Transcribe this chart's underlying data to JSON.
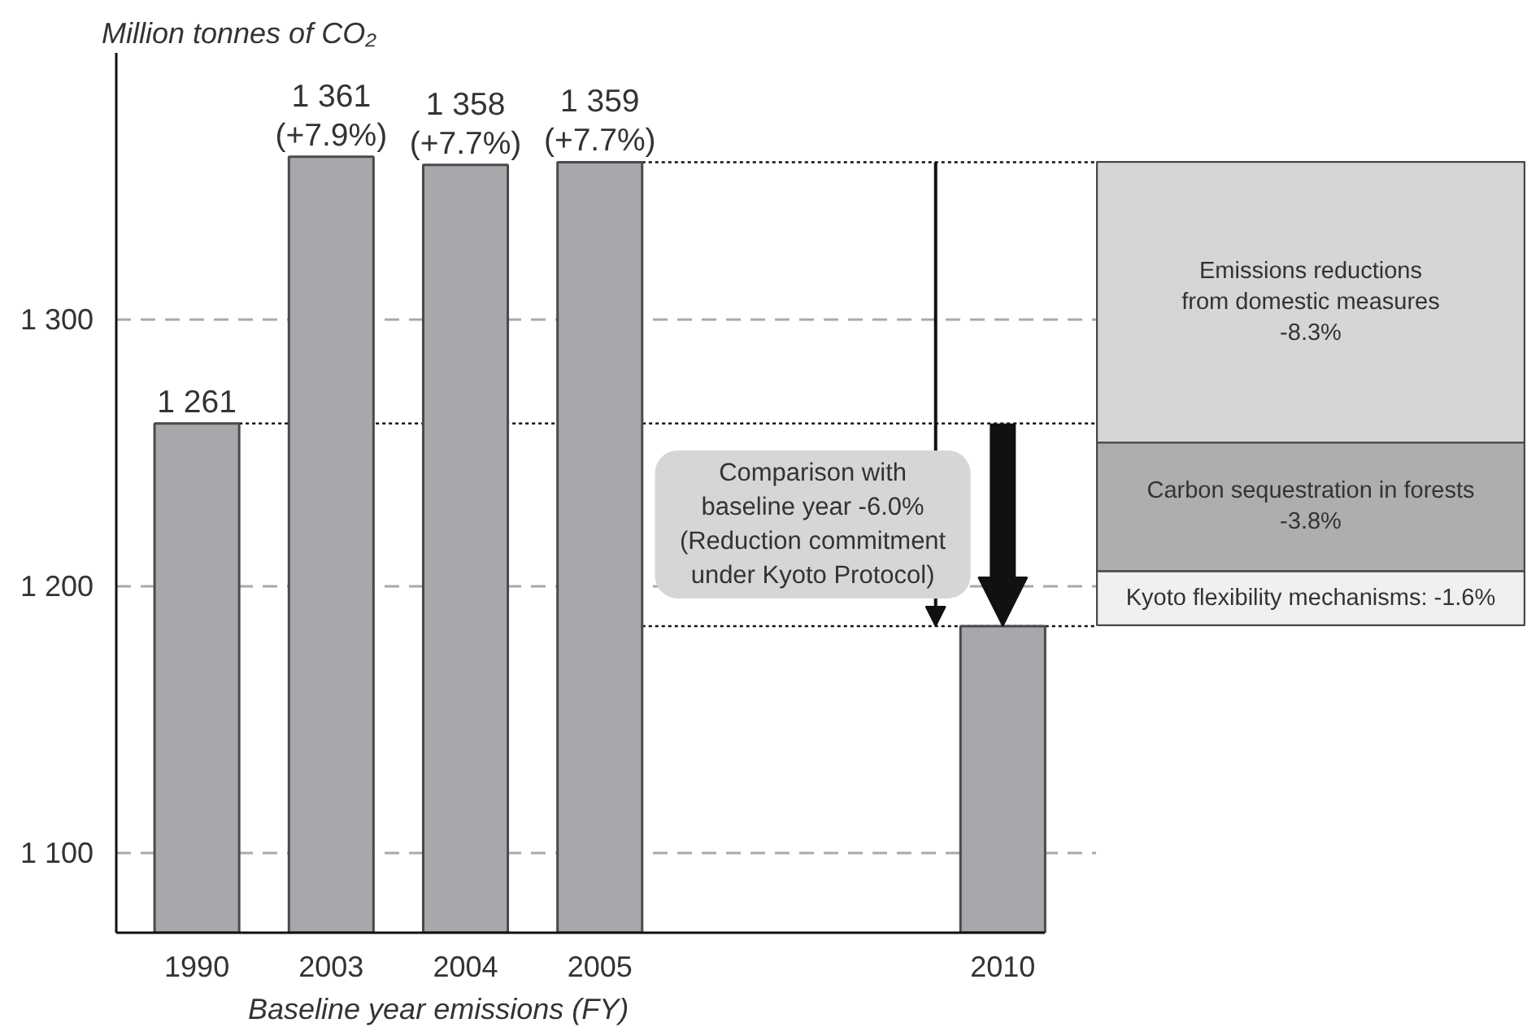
{
  "chart_data": [
    {
      "type": "bar",
      "ylabel": "Million tonnes of CO₂",
      "xlabel": "Baseline year emissions (FY)",
      "categories": [
        "1990",
        "2003",
        "2004",
        "2005",
        null,
        null,
        "2010"
      ],
      "series": [
        {
          "color": "#a7a8ab",
          "values": [
            1261,
            1361,
            1358,
            1359,
            null,
            null,
            1185
          ],
          "value_labels": [
            "1 261",
            "1 361 (+7.9%)",
            "1 358 (+7.7%)",
            "1 359 (+7.7%)",
            null,
            null,
            null
          ]
        }
      ],
      "ylim": [
        1070,
        1400
      ],
      "yticks": [
        {
          "value": 1100,
          "label": "1 100"
        },
        {
          "value": 1200,
          "label": "1 200"
        },
        {
          "value": 1300,
          "label": "1 300"
        }
      ],
      "grid": "y",
      "ref_lines": [
        {
          "axis": "y",
          "value": 1261,
          "line_style": "dotted"
        },
        {
          "axis": "y",
          "value": 1359,
          "line_style": "dotted"
        },
        {
          "axis": "y",
          "value": 1185,
          "line_style": "dotted"
        }
      ],
      "annotations": [
        {
          "text": "Comparison with baseline year -6.0% (Reduction commitment under Kyoto Protocol)",
          "x": "2010",
          "y": 1185
        }
      ]
    },
    {
      "type": "bar",
      "stacked": true,
      "categories": [
        null
      ],
      "ylim": [
        -13.7,
        0
      ],
      "tick_labels": false,
      "series": [
        {
          "name": "Emissions reductions from domestic measures",
          "color": "#d6d6d8",
          "values": [
            -8.3
          ],
          "value_labels": [
            "-8.3%"
          ]
        },
        {
          "name": "Carbon sequestration in forests",
          "color": "#aeaeb1",
          "values": [
            -3.8
          ],
          "value_labels": [
            "-3.8%"
          ]
        },
        {
          "name": "Kyoto flexibility mechanisms:",
          "color": "#f0f0f0",
          "values": [
            -1.6
          ],
          "value_labels": [
            "-1.6%"
          ]
        }
      ]
    }
  ]
}
